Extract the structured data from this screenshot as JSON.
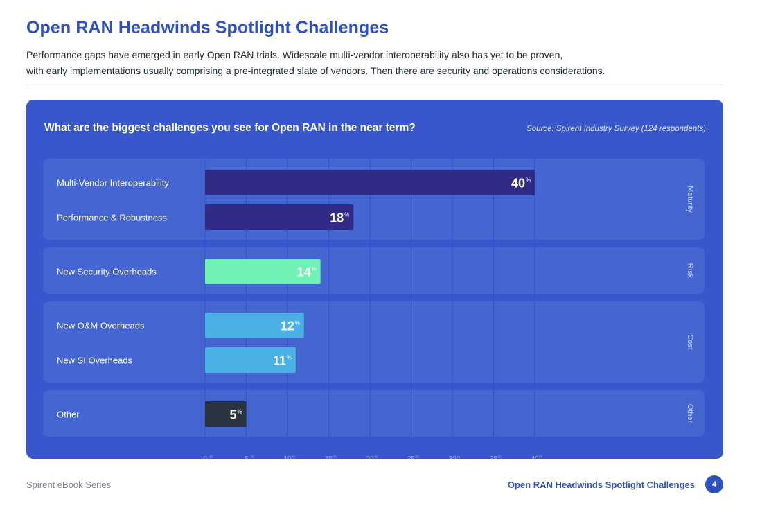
{
  "page": {
    "title": "Open RAN Headwinds Spotlight Challenges",
    "intro_line1": "Performance gaps have emerged in early Open RAN trials. Widescale multi-vendor interoperability also has yet to be proven,",
    "intro_line2": "with early implementations usually comprising a pre-integrated slate of vendors. Then there are security and operations considerations."
  },
  "chart_data": {
    "type": "bar",
    "orientation": "horizontal",
    "title": "What are the biggest challenges you see for Open RAN in the near term?",
    "source": "Source: Spirent Industry Survey (124 respondents)",
    "unit": "%",
    "xlim": [
      0,
      40
    ],
    "ticks": [
      0,
      5,
      10,
      15,
      20,
      25,
      30,
      35,
      40
    ],
    "groups": [
      {
        "name": "Maturity",
        "items": [
          {
            "label": "Multi-Vendor Interoperability",
            "value": 40,
            "color": "#312a86"
          },
          {
            "label": "Performance & Robustness",
            "value": 18,
            "color": "#312a86"
          }
        ]
      },
      {
        "name": "Risk",
        "items": [
          {
            "label": "New Security Overheads",
            "value": 14,
            "color": "#6ff0b4"
          }
        ]
      },
      {
        "name": "Cost",
        "items": [
          {
            "label": "New O&M Overheads",
            "value": 12,
            "color": "#4bb0e3"
          },
          {
            "label": "New SI Overheads",
            "value": 11,
            "color": "#4bb0e3"
          }
        ]
      },
      {
        "name": "Other",
        "items": [
          {
            "label": "Other",
            "value": 5,
            "color": "#2a3440"
          }
        ]
      }
    ],
    "colors": {
      "card_bg": "#3757cb",
      "panel_bg": "#4565d0",
      "gridline": "#3450c2",
      "tick_label": "#8ea4ec",
      "side_label": "#c6d2f7"
    }
  },
  "footer": {
    "series": "Spirent eBook Series",
    "title": "Open RAN Headwinds Spotlight Challenges",
    "page_number": "4"
  }
}
